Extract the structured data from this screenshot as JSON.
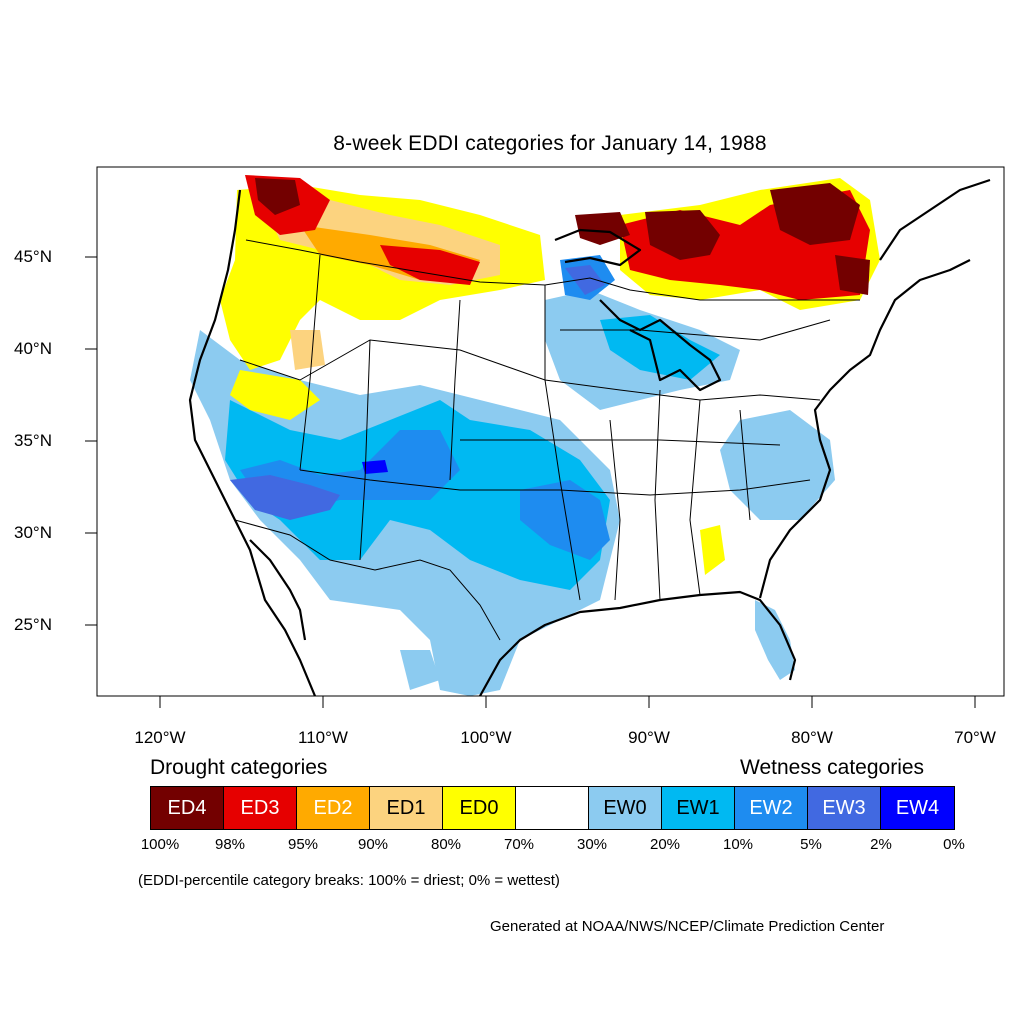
{
  "title": "8-week EDDI categories for January 14, 1988",
  "lat_labels": [
    "45°N",
    "40°N",
    "35°N",
    "30°N",
    "25°N"
  ],
  "lon_labels": [
    "120°W",
    "110°W",
    "100°W",
    "90°W",
    "80°W",
    "70°W"
  ],
  "drought_header": "Drought categories",
  "wetness_header": "Wetness categories",
  "legend": [
    {
      "label": "ED4",
      "color": "#730000",
      "text_color": "#ffffff"
    },
    {
      "label": "ED3",
      "color": "#e60000",
      "text_color": "#ffffff"
    },
    {
      "label": "ED2",
      "color": "#ffaa00",
      "text_color": "#ffffff"
    },
    {
      "label": "ED1",
      "color": "#fcd37f",
      "text_color": "#000000"
    },
    {
      "label": "ED0",
      "color": "#ffff00",
      "text_color": "#000000"
    },
    {
      "label": "",
      "color": "#ffffff",
      "text_color": "#000000"
    },
    {
      "label": "EW0",
      "color": "#8ccbf0",
      "text_color": "#000000"
    },
    {
      "label": "EW1",
      "color": "#00b9f2",
      "text_color": "#000000"
    },
    {
      "label": "EW2",
      "color": "#1e8cf0",
      "text_color": "#ffffff"
    },
    {
      "label": "EW3",
      "color": "#4169e1",
      "text_color": "#ffffff"
    },
    {
      "label": "EW4",
      "color": "#0000ff",
      "text_color": "#ffffff"
    }
  ],
  "percent_breaks": [
    "100%",
    "98%",
    "95%",
    "90%",
    "80%",
    "70%",
    "30%",
    "20%",
    "10%",
    "5%",
    "2%",
    "0%"
  ],
  "note": "(EDDI-percentile category breaks: 100% = driest; 0% = wettest)",
  "credit": "Generated at NOAA/NWS/NCEP/Climate Prediction Center"
}
